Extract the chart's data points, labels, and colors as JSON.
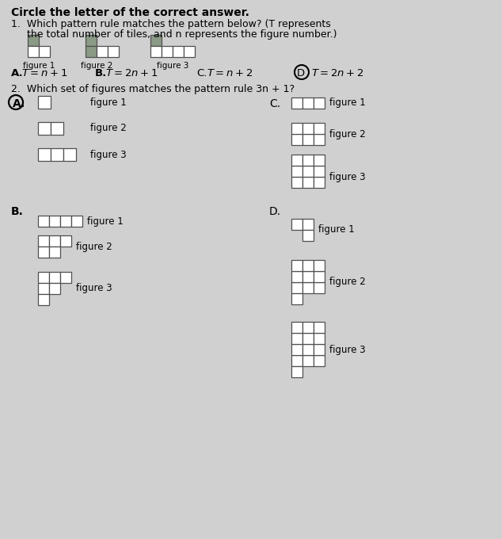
{
  "bg_color": "#d0d0d0",
  "dark_tile": "#8a9a84",
  "outline": "#505050",
  "white_tile": "#ffffff",
  "title": "Circle the letter of the correct answer.",
  "q1_line1": "1.  Which pattern rule matches the pattern below? (T represents",
  "q1_line2": "     the total number of tiles, and n represents the figure number.)",
  "q2_line": "2.  Which set of figures matches the pattern rule 3n + 1?",
  "figsize": [
    6.34,
    6.8
  ],
  "dpi": 100
}
